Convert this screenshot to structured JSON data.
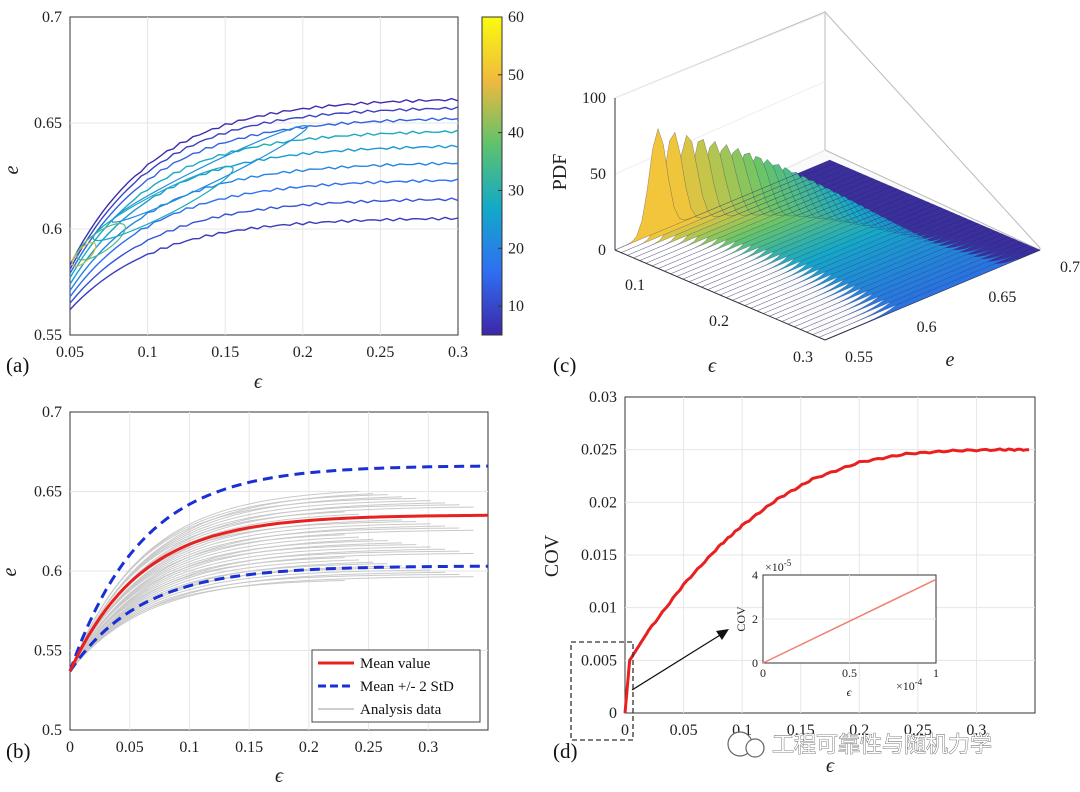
{
  "watermark": "工程可靠性与随机力学",
  "panels": {
    "a": {
      "label": "(a)"
    },
    "b": {
      "label": "(b)"
    },
    "c": {
      "label": "(c)"
    },
    "d": {
      "label": "(d)"
    }
  },
  "chart_data": [
    {
      "id": "a",
      "type": "contour",
      "xlabel": "ϵ",
      "ylabel": "e",
      "xlim": [
        0.05,
        0.3
      ],
      "ylim": [
        0.55,
        0.7
      ],
      "xticks": [
        "0.05",
        "0.1",
        "0.15",
        "0.2",
        "0.25",
        "0.3"
      ],
      "yticks": [
        "0.55",
        "0.6",
        "0.65",
        "0.7"
      ],
      "colorbar": {
        "range": [
          5,
          60
        ],
        "ticks": [
          "10",
          "20",
          "30",
          "40",
          "50",
          "60"
        ],
        "colors": [
          "#3e26a8",
          "#2f6ff2",
          "#13a9c8",
          "#5fc26c",
          "#f0b93e",
          "#f9fb0e"
        ]
      },
      "levels": [
        {
          "e_start": 0.562,
          "e_end": 0.605,
          "level": 8
        },
        {
          "e_start": 0.565,
          "e_end": 0.614,
          "level": 12
        },
        {
          "e_start": 0.568,
          "e_end": 0.623,
          "level": 16
        },
        {
          "e_start": 0.571,
          "e_end": 0.631,
          "level": 20
        },
        {
          "e_start": 0.574,
          "e_end": 0.639,
          "level": 24
        },
        {
          "e_start": 0.577,
          "e_end": 0.646,
          "level": 28
        },
        {
          "e_start": 0.579,
          "e_end": 0.652,
          "level": 14
        },
        {
          "e_start": 0.581,
          "e_end": 0.657,
          "level": 9
        },
        {
          "e_start": 0.583,
          "e_end": 0.661,
          "level": 6
        }
      ]
    },
    {
      "id": "b",
      "type": "line",
      "xlabel": "ϵ",
      "ylabel": "e",
      "xlim": [
        0,
        0.35
      ],
      "ylim": [
        0.5,
        0.7
      ],
      "xticks": [
        "0",
        "0.05",
        "0.1",
        "0.15",
        "0.2",
        "0.25",
        "0.3"
      ],
      "yticks": [
        "0.5",
        "0.55",
        "0.6",
        "0.65",
        "0.7"
      ],
      "e0": 0.537,
      "series": [
        {
          "name": "Mean value",
          "final": 0.635,
          "color": "#e8201f"
        },
        {
          "name": "Mean +/- 2 StD",
          "final_upper": 0.666,
          "final_lower": 0.603,
          "color": "#1a2fd4"
        },
        {
          "name": "Analysis data",
          "final_range": [
            0.595,
            0.652
          ],
          "color": "#bdbdbd"
        }
      ]
    },
    {
      "id": "c",
      "type": "surface",
      "xlabel": "ϵ",
      "ylabel": "e",
      "zlabel": "PDF",
      "xticks": [
        "0.1",
        "0.2",
        "0.3"
      ],
      "yticks": [
        "0.55",
        "0.6",
        "0.65",
        "0.7"
      ],
      "zticks": [
        "0",
        "50",
        "100"
      ],
      "peak_pdf": 65,
      "ridge": [
        {
          "strain": 0.06,
          "e": 0.58,
          "pdf": 65
        },
        {
          "strain": 0.15,
          "e": 0.62,
          "pdf": 42
        },
        {
          "strain": 0.3,
          "e": 0.635,
          "pdf": 18
        }
      ]
    },
    {
      "id": "d",
      "type": "line",
      "xlabel": "ϵ",
      "ylabel": "COV",
      "xlim": [
        0,
        0.35
      ],
      "ylim": [
        0,
        0.03
      ],
      "xticks": [
        "0",
        "0.05",
        "0.1",
        "0.15",
        "0.2",
        "0.25",
        "0.3"
      ],
      "yticks": [
        "0",
        "0.005",
        "0.01",
        "0.015",
        "0.02",
        "0.025",
        "0.03"
      ],
      "x": [
        0,
        0.004,
        0.02,
        0.05,
        0.08,
        0.1,
        0.13,
        0.16,
        0.2,
        0.24,
        0.28,
        0.32,
        0.345
      ],
      "y": [
        0,
        0.005,
        0.0078,
        0.0122,
        0.0158,
        0.0178,
        0.0203,
        0.0222,
        0.0238,
        0.0246,
        0.0249,
        0.025,
        0.025
      ],
      "inset": {
        "xlabel": "ϵ",
        "ylabel": "COV",
        "xticks": [
          "0",
          "0.5",
          "1"
        ],
        "yticks": [
          "0",
          "2",
          "4"
        ],
        "xexp": "×10",
        "xexp_power": "-4",
        "yexp": "×10",
        "yexp_power": "-5",
        "x_start": 0,
        "x_end": 1,
        "y_start": 0,
        "y_end": 3.8
      }
    }
  ]
}
